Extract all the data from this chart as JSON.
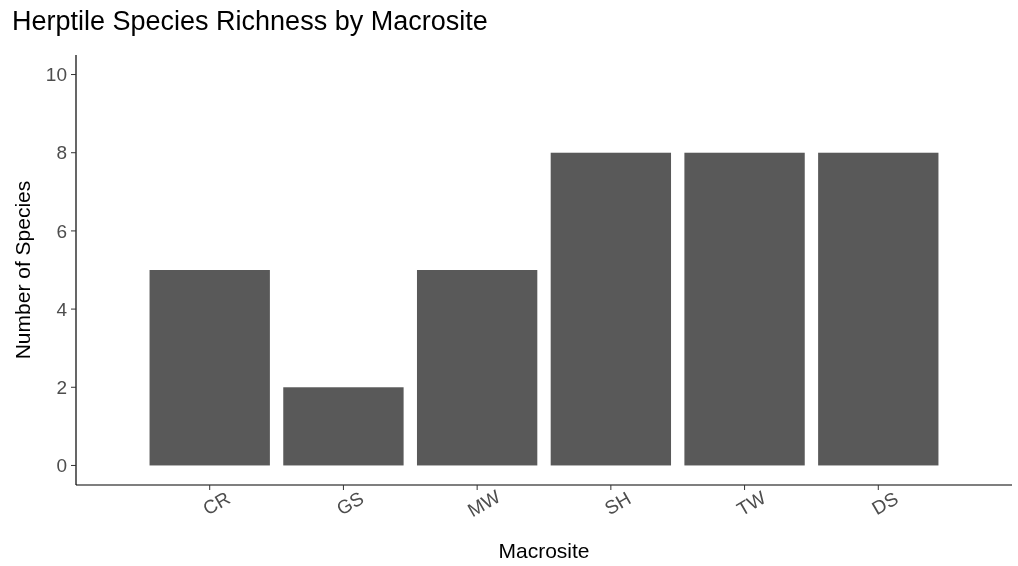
{
  "chart_data": {
    "type": "bar",
    "title": "Herptile Species Richness by Macrosite",
    "xlabel": "Macrosite",
    "ylabel": "Number of Species",
    "categories": [
      "CR",
      "GS",
      "MW",
      "SH",
      "TW",
      "DS"
    ],
    "values": [
      5,
      2,
      5,
      8,
      8,
      8
    ],
    "color": "#595959",
    "ylim": [
      -0.5,
      10.5
    ],
    "yticks": [
      0,
      2,
      4,
      6,
      8,
      10
    ],
    "grid": false
  }
}
